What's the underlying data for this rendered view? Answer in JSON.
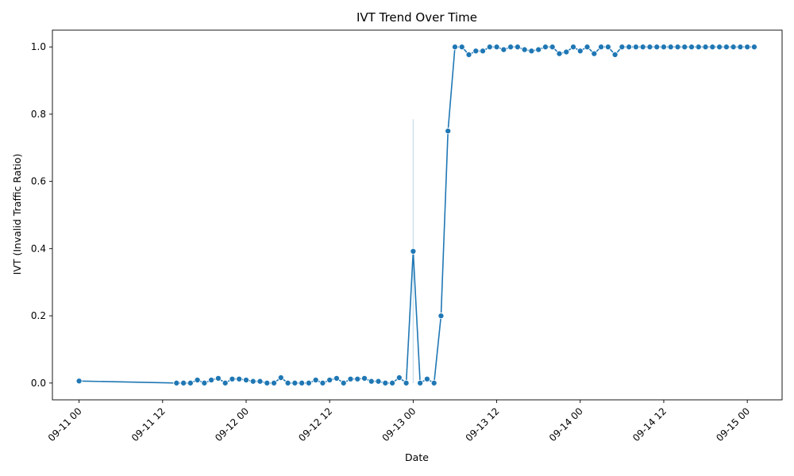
{
  "chart_data": {
    "type": "line",
    "title": "IVT Trend Over Time",
    "xlabel": "Date",
    "ylabel": "IVT (Invalid Traffic Ratio)",
    "grid": false,
    "legend": "none",
    "color": "#1f77b4",
    "x_ticks": [
      "09-11 00",
      "09-11 12",
      "09-12 00",
      "09-12 12",
      "09-13 00",
      "09-13 12",
      "09-14 00",
      "09-14 12",
      "09-15 00"
    ],
    "y_ticks": [
      "0.0",
      "0.2",
      "0.4",
      "0.6",
      "0.8",
      "1.0"
    ],
    "xlim": [
      "09-10 20:10",
      "09-15 05:00"
    ],
    "ylim": [
      -0.05,
      1.05
    ],
    "series": [
      {
        "x": [
          "09-11 00",
          "09-11 14",
          "09-11 15",
          "09-11 16",
          "09-11 17",
          "09-11 18",
          "09-11 19",
          "09-11 20",
          "09-11 21",
          "09-11 22",
          "09-11 23",
          "09-12 00",
          "09-12 01",
          "09-12 02",
          "09-12 03",
          "09-12 04",
          "09-12 05",
          "09-12 06",
          "09-12 07",
          "09-12 08",
          "09-12 09",
          "09-12 10",
          "09-12 11",
          "09-12 12",
          "09-12 13",
          "09-12 14",
          "09-12 15",
          "09-12 16",
          "09-12 17",
          "09-12 18",
          "09-12 19",
          "09-12 20",
          "09-12 21",
          "09-12 22",
          "09-12 23",
          "09-13 00",
          "09-13 01",
          "09-13 02",
          "09-13 03",
          "09-13 04",
          "09-13 05",
          "09-13 06",
          "09-13 07",
          "09-13 08",
          "09-13 09",
          "09-13 10",
          "09-13 11",
          "09-13 12",
          "09-13 13",
          "09-13 14",
          "09-13 15",
          "09-13 16",
          "09-13 17",
          "09-13 18",
          "09-13 19",
          "09-13 20",
          "09-13 21",
          "09-13 22",
          "09-13 23",
          "09-14 00",
          "09-14 01",
          "09-14 02",
          "09-14 03",
          "09-14 04",
          "09-14 05",
          "09-14 06",
          "09-14 07",
          "09-14 08",
          "09-14 09",
          "09-14 10",
          "09-14 11",
          "09-14 12",
          "09-14 13",
          "09-14 14",
          "09-14 15",
          "09-14 16",
          "09-14 17",
          "09-14 18",
          "09-14 19",
          "09-14 20",
          "09-14 21",
          "09-14 22",
          "09-14 23",
          "09-15 00",
          "09-15 01"
        ],
        "values": [
          0.006,
          0.0,
          0.0,
          0.0,
          0.009,
          0.0,
          0.009,
          0.014,
          0.0,
          0.012,
          0.012,
          0.009,
          0.005,
          0.005,
          0.0,
          0.0,
          0.016,
          0.0,
          0.0,
          0.0,
          0.0,
          0.009,
          0.0,
          0.009,
          0.014,
          0.0,
          0.012,
          0.012,
          0.014,
          0.005,
          0.005,
          0.0,
          0.0,
          0.016,
          0.0,
          0.392,
          0.0,
          0.012,
          0.0,
          0.2,
          0.75,
          1.0,
          1.0,
          0.977,
          0.988,
          0.988,
          1.0,
          1.0,
          0.992,
          1.0,
          1.0,
          0.992,
          0.988,
          0.992,
          1.0,
          1.0,
          0.98,
          0.985,
          1.0,
          0.988,
          1.0,
          0.98,
          1.0,
          1.0,
          0.977,
          1.0,
          1.0,
          1.0,
          1.0,
          1.0,
          1.0,
          1.0,
          1.0,
          1.0,
          1.0,
          1.0,
          1.0,
          1.0,
          1.0,
          1.0,
          1.0,
          1.0,
          1.0,
          1.0,
          1.0
        ],
        "ci": [
          {
            "x": "09-13 00",
            "low": 0.0,
            "high": 0.785
          }
        ]
      }
    ]
  }
}
